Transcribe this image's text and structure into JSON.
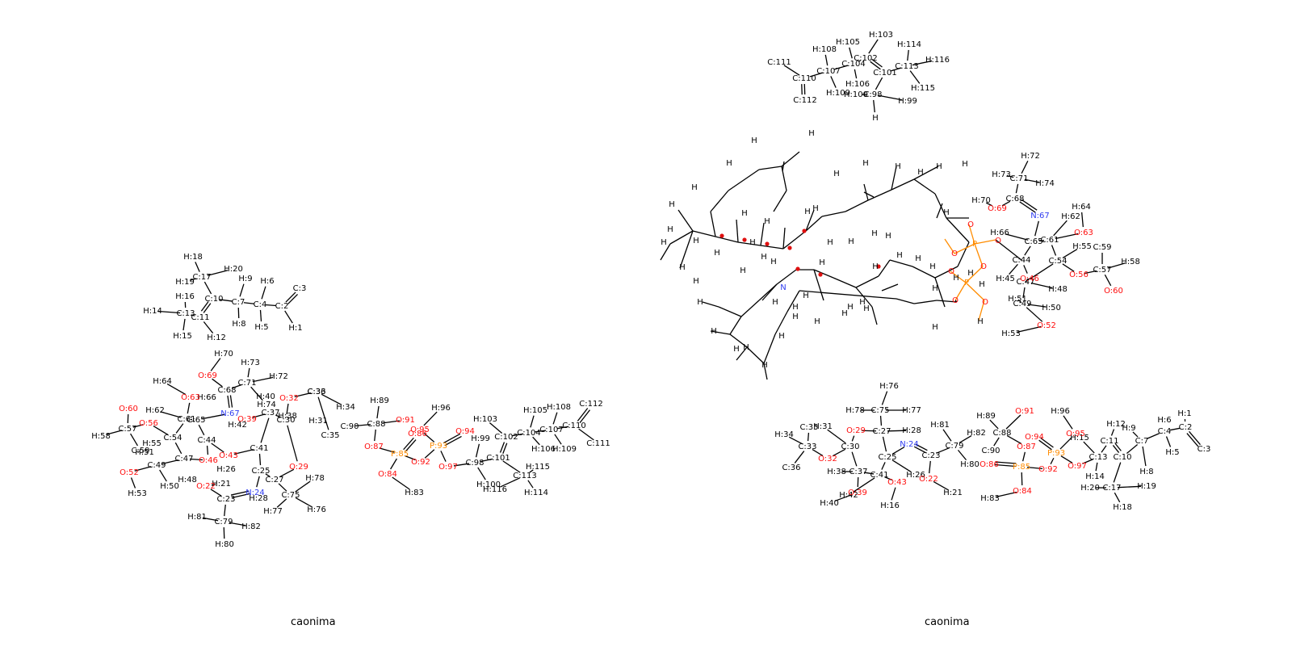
{
  "colors": {
    "bond": "#000000",
    "carbon_hydrogen": "#000000",
    "oxygen": "#ff0d0d",
    "nitrogen": "#2f3cf0",
    "phosphorus": "#ff8c00",
    "marker": "#e01010"
  },
  "panels": [
    {
      "caption": "caonima"
    },
    {
      "caption": "caonima"
    }
  ],
  "left_labels": {
    "C": [
      "C:2",
      "C:3",
      "C:4",
      "C:7",
      "C:10",
      "C:11",
      "C:13",
      "C:17",
      "C:23",
      "C:25",
      "C:27",
      "C:30",
      "C:33",
      "C:35",
      "C:36",
      "C:37",
      "C:41",
      "C:44",
      "C:47",
      "C:49",
      "C:54",
      "C:57",
      "C:59",
      "C:61",
      "C:65",
      "C:68",
      "C:71",
      "C:75",
      "C:79",
      "C:88",
      "C:90",
      "C:98",
      "C:101",
      "C:102",
      "C:104",
      "C:107",
      "C:110",
      "C:111",
      "C:112",
      "C:113"
    ],
    "H": [
      "H:1",
      "H:5",
      "H:6",
      "H:8",
      "H:9",
      "H:12",
      "H:14",
      "H:15",
      "H:16",
      "H:18",
      "H:19",
      "H:20",
      "H:21",
      "H:26",
      "H:28",
      "H:31",
      "H:34",
      "H:38",
      "H:40",
      "H:42",
      "H:48",
      "H:50",
      "H:51",
      "H:53",
      "H:55",
      "H:58",
      "H:62",
      "H:64",
      "H:66",
      "H:70",
      "H:72",
      "H:73",
      "H:74",
      "H:76",
      "H:77",
      "H:78",
      "H:80",
      "H:81",
      "H:82",
      "H:83",
      "H:89",
      "H:96",
      "H:99",
      "H:100",
      "H:103",
      "H:105",
      "H:106",
      "H:108",
      "H:109",
      "H:114",
      "H:115",
      "H:116"
    ],
    "O": [
      "O:22",
      "O:29",
      "O:32",
      "O:39",
      "O:43",
      "O:46",
      "O:52",
      "O:56",
      "O:60",
      "O:63",
      "O:69",
      "O:84",
      "O:86",
      "O:87",
      "O:91",
      "O:92",
      "O:94",
      "O:95",
      "O:97"
    ],
    "N": [
      "N:24",
      "N:67"
    ],
    "P": [
      "P:85",
      "P:93"
    ]
  },
  "right_top_labels": {
    "C": [
      "C:98",
      "C:101",
      "C:102",
      "C:104",
      "C:107",
      "C:110",
      "C:111",
      "C:112",
      "C:113"
    ],
    "H": [
      "H:99",
      "H:100",
      "H:103",
      "H:105",
      "H:106",
      "H:108",
      "H:109",
      "H:114",
      "H:115",
      "H:116",
      "H"
    ]
  },
  "right_middle_labels": {
    "atoms": [
      "H",
      "N",
      "O",
      "P"
    ],
    "C": [
      "C:44",
      "C:47",
      "C:49",
      "C:54",
      "C:57",
      "C:59",
      "C:61",
      "C:65",
      "C:68",
      "C:71"
    ],
    "H": [
      "H:45",
      "H:48",
      "H:50",
      "H:51",
      "H:53",
      "H:55",
      "H:58",
      "H:62",
      "H:64",
      "H:66",
      "H:70",
      "H:72",
      "H:73",
      "H:74"
    ],
    "O": [
      "O:46",
      "O:52",
      "O:56",
      "O:60",
      "O:63",
      "O:69"
    ],
    "N": [
      "N:67"
    ]
  },
  "right_bottom_labels": {
    "C": [
      "C:2",
      "C:3",
      "C:4",
      "C:7",
      "C:10",
      "C:11",
      "C:13",
      "C:17",
      "C:23",
      "C:25",
      "C:27",
      "C:30",
      "C:33",
      "C:35",
      "C:36",
      "C:37",
      "C:41",
      "C:75",
      "C:79",
      "C:88",
      "C:90"
    ],
    "H": [
      "H:1",
      "H:5",
      "H:6",
      "H:8",
      "H:9",
      "H:12",
      "H:14",
      "H:15",
      "H:16",
      "H:18",
      "H:19",
      "H:20",
      "H:21",
      "H:26",
      "H:28",
      "H:31",
      "H:34",
      "H:38",
      "H:40",
      "H:42",
      "H:76",
      "H:77",
      "H:78",
      "H:80",
      "H:81",
      "H:82",
      "H:83",
      "H:89",
      "H:96"
    ],
    "O": [
      "O:22",
      "O:29",
      "O:32",
      "O:39",
      "O:43",
      "O:84",
      "O:86",
      "O:87",
      "O:91",
      "O:92",
      "O:94",
      "O:95",
      "O:97"
    ],
    "N": [
      "N:24"
    ],
    "P": [
      "P:85",
      "P:93"
    ]
  }
}
